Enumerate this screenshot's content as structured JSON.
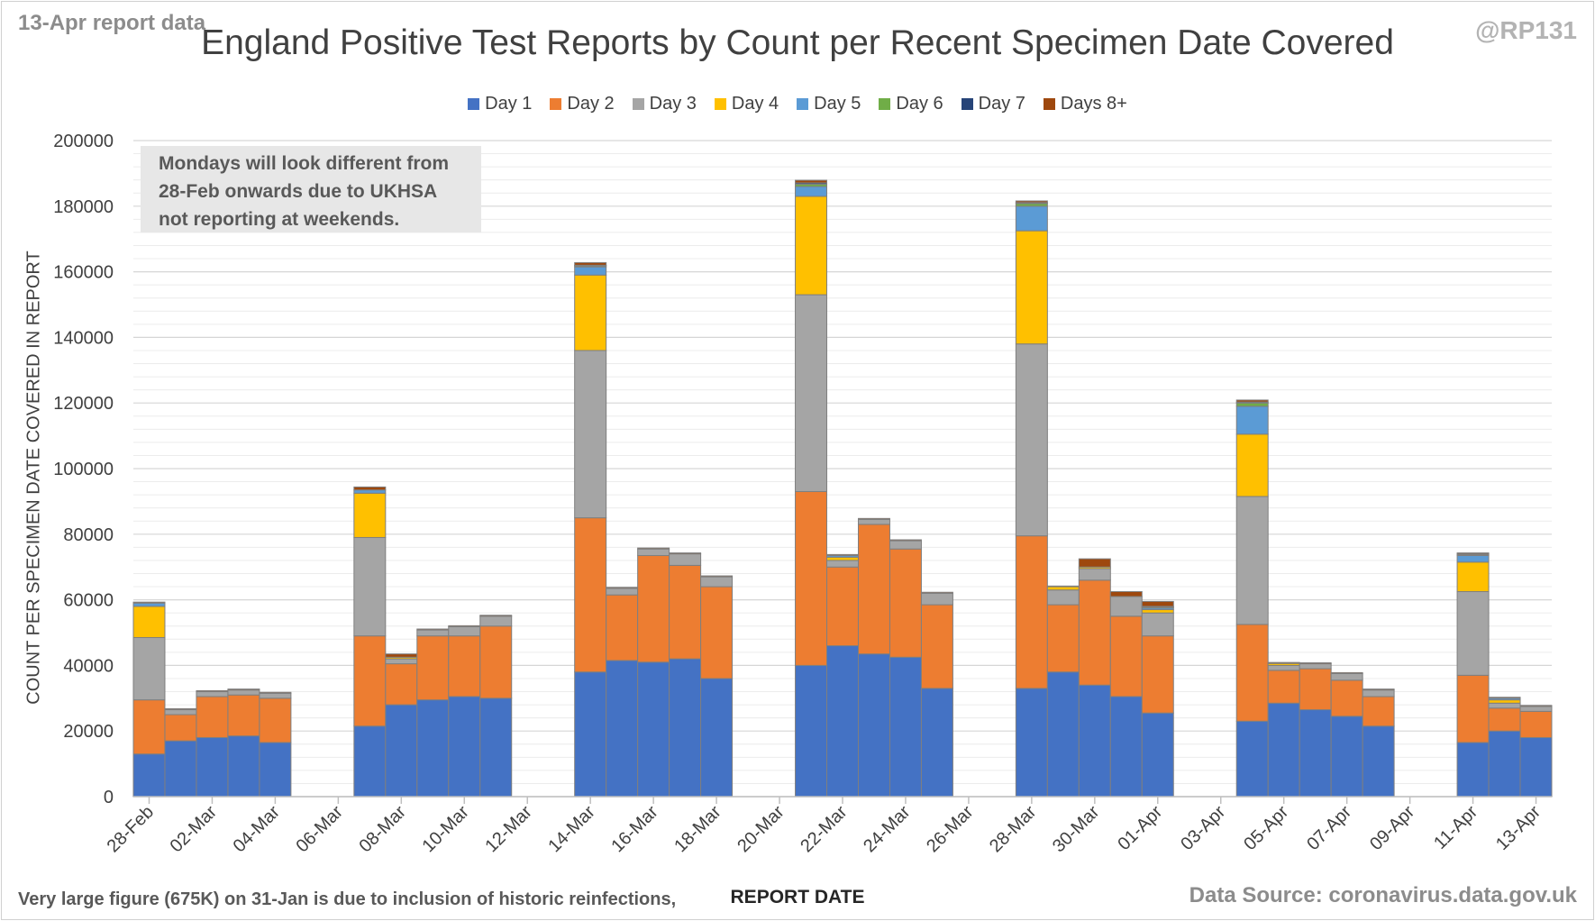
{
  "corner_left": "13-Apr report data",
  "corner_right": "@RP131",
  "note": {
    "line1": "Mondays will look different from",
    "line2": "28-Feb onwards due to UKHSA",
    "line3": "not reporting at weekends."
  },
  "footnote_left": "Very large figure (675K) on 31-Jan is due to inclusion of historic reinfections,",
  "footnote_right": "Data Source: coronavirus.data.gov.uk",
  "colors": {
    "Day 1": "#4472c4",
    "Day 2": "#ed7d31",
    "Day 3": "#a5a5a5",
    "Day 4": "#ffc000",
    "Day 5": "#5b9bd5",
    "Day 6": "#70ad47",
    "Day 7": "#264478",
    "Days 8+": "#9e480e"
  },
  "chart_data": {
    "type": "bar",
    "stacked": true,
    "title": "England Positive Test Reports by Count per Recent Specimen Date Covered",
    "xlabel": "REPORT DATE",
    "ylabel": "COUNT PER SPECIMEN DATE COVERED IN REPORT",
    "ylim": [
      0,
      200000
    ],
    "yticks": [
      0,
      20000,
      40000,
      60000,
      80000,
      100000,
      120000,
      140000,
      160000,
      180000,
      200000
    ],
    "grid": true,
    "legend": "top",
    "tick_labels": [
      "28-Feb",
      "02-Mar",
      "04-Mar",
      "06-Mar",
      "08-Mar",
      "10-Mar",
      "12-Mar",
      "14-Mar",
      "16-Mar",
      "18-Mar",
      "20-Mar",
      "22-Mar",
      "24-Mar",
      "26-Mar",
      "28-Mar",
      "30-Mar",
      "01-Apr",
      "03-Apr",
      "05-Apr",
      "07-Apr",
      "09-Apr",
      "11-Apr",
      "13-Apr"
    ],
    "categories": [
      "28-Feb",
      "01-Mar",
      "02-Mar",
      "03-Mar",
      "04-Mar",
      "05-Mar",
      "06-Mar",
      "07-Mar",
      "08-Mar",
      "09-Mar",
      "10-Mar",
      "11-Mar",
      "12-Mar",
      "13-Mar",
      "14-Mar",
      "15-Mar",
      "16-Mar",
      "17-Mar",
      "18-Mar",
      "19-Mar",
      "20-Mar",
      "21-Mar",
      "22-Mar",
      "23-Mar",
      "24-Mar",
      "25-Mar",
      "26-Mar",
      "27-Mar",
      "28-Mar",
      "29-Mar",
      "30-Mar",
      "31-Mar",
      "01-Apr",
      "02-Apr",
      "03-Apr",
      "04-Apr",
      "05-Apr",
      "06-Apr",
      "07-Apr",
      "08-Apr",
      "09-Apr",
      "10-Apr",
      "11-Apr",
      "12-Apr",
      "13-Apr"
    ],
    "series": [
      {
        "name": "Day 1",
        "values": [
          13000,
          17000,
          18000,
          18500,
          16500,
          0,
          0,
          21500,
          28000,
          29500,
          30500,
          30000,
          0,
          0,
          38000,
          41500,
          41000,
          42000,
          36000,
          0,
          0,
          40000,
          46000,
          43500,
          42500,
          33000,
          0,
          0,
          33000,
          38000,
          34000,
          30500,
          25500,
          0,
          0,
          23000,
          28500,
          26500,
          24500,
          21500,
          0,
          0,
          16500,
          20000,
          18000
        ]
      },
      {
        "name": "Day 2",
        "values": [
          16500,
          8000,
          12500,
          12500,
          13500,
          0,
          0,
          27500,
          12500,
          19500,
          18500,
          22000,
          0,
          0,
          47000,
          20000,
          32500,
          28500,
          28000,
          0,
          0,
          53000,
          24000,
          39500,
          33000,
          25500,
          0,
          0,
          46500,
          20500,
          32000,
          24500,
          23500,
          0,
          0,
          29500,
          10000,
          12500,
          11000,
          9000,
          0,
          0,
          20500,
          7000,
          8000
        ]
      },
      {
        "name": "Day 3",
        "values": [
          19000,
          1500,
          1500,
          1500,
          1500,
          0,
          0,
          30000,
          1500,
          1800,
          2800,
          3000,
          0,
          0,
          51000,
          2000,
          2000,
          3500,
          3000,
          0,
          0,
          60000,
          2000,
          1500,
          2500,
          3500,
          0,
          0,
          58500,
          4500,
          3500,
          6000,
          7000,
          0,
          0,
          39000,
          1500,
          1500,
          2000,
          2000,
          0,
          0,
          25500,
          1500,
          1500
        ]
      },
      {
        "name": "Day 4",
        "values": [
          9500,
          0,
          0,
          0,
          0,
          0,
          0,
          13500,
          500,
          0,
          0,
          0,
          0,
          0,
          23000,
          0,
          0,
          0,
          0,
          0,
          0,
          30000,
          1000,
          0,
          0,
          0,
          0,
          0,
          34500,
          1000,
          500,
          0,
          1000,
          0,
          0,
          19000,
          600,
          0,
          0,
          0,
          0,
          0,
          9000,
          1000,
          0
        ]
      },
      {
        "name": "Day 5",
        "values": [
          1000,
          0,
          0,
          0,
          0,
          0,
          0,
          1000,
          0,
          0,
          0,
          0,
          0,
          0,
          2500,
          0,
          0,
          0,
          0,
          0,
          0,
          3000,
          500,
          0,
          0,
          0,
          0,
          0,
          7500,
          0,
          0,
          0,
          500,
          0,
          0,
          8500,
          0,
          0,
          0,
          0,
          0,
          0,
          2000,
          500,
          0
        ]
      },
      {
        "name": "Day 6",
        "values": [
          0,
          0,
          0,
          0,
          0,
          0,
          0,
          0,
          0,
          0,
          0,
          0,
          0,
          0,
          300,
          0,
          0,
          0,
          0,
          0,
          0,
          700,
          0,
          0,
          0,
          0,
          0,
          0,
          800,
          0,
          0,
          0,
          300,
          0,
          0,
          1000,
          0,
          0,
          0,
          0,
          0,
          0,
          300,
          0,
          0
        ]
      },
      {
        "name": "Day 7",
        "values": [
          0,
          0,
          0,
          0,
          0,
          0,
          0,
          0,
          0,
          0,
          0,
          0,
          0,
          0,
          200,
          0,
          0,
          0,
          0,
          0,
          0,
          400,
          0,
          0,
          0,
          0,
          0,
          0,
          300,
          0,
          0,
          0,
          200,
          0,
          0,
          300,
          0,
          0,
          0,
          0,
          0,
          0,
          200,
          0,
          0
        ]
      },
      {
        "name": "Days 8+",
        "values": [
          300,
          300,
          300,
          300,
          300,
          0,
          0,
          900,
          1000,
          300,
          300,
          300,
          0,
          0,
          800,
          300,
          300,
          300,
          300,
          0,
          0,
          800,
          300,
          300,
          300,
          300,
          0,
          0,
          500,
          200,
          2500,
          1500,
          1500,
          0,
          0,
          600,
          300,
          300,
          300,
          300,
          0,
          0,
          300,
          300,
          300
        ]
      }
    ]
  }
}
